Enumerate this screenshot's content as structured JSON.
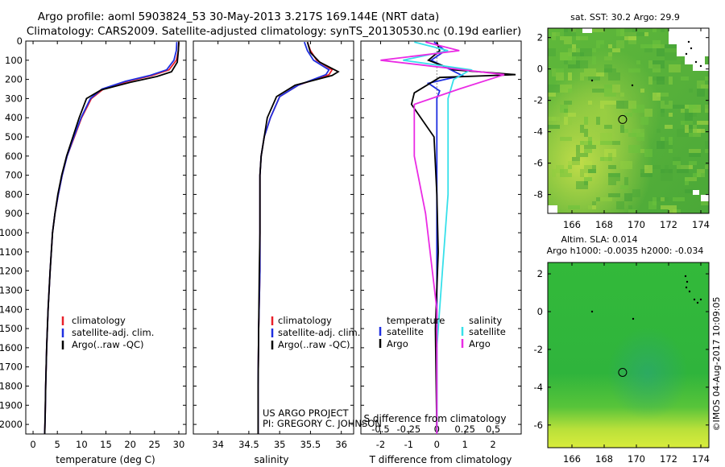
{
  "header": {
    "line1": "Argo profile: aoml 5903824_53 30-May-2013 3.217S 169.144E (NRT data)",
    "line2": "Climatology: CARS2009. Satellite-adjusted climatology: synTS_20130530.nc (0.19d earlier)"
  },
  "credits": {
    "project": "US ARGO PROJECT",
    "pi": "PI: GREGORY C. JOHNSON",
    "stamp": "©IMOS 04-Aug-2017 10:09:05"
  },
  "colors": {
    "climatology": "#e8202a",
    "satellite": "#1f2fe0",
    "argo": "#000000",
    "sal_satellite": "#37e0ea",
    "sal_argo": "#ea2ce4",
    "map_land": "#ffffff"
  },
  "chart_data": [
    {
      "type": "line",
      "id": "temperature",
      "xlabel": "temperature (deg C)",
      "ylabel": "",
      "xlim": [
        -1.5,
        31.5
      ],
      "ylim": [
        2050,
        0
      ],
      "xticks": [
        0,
        5,
        10,
        15,
        20,
        25,
        30
      ],
      "yticks": [
        0,
        100,
        200,
        300,
        400,
        500,
        600,
        700,
        800,
        900,
        1000,
        1100,
        1200,
        1300,
        1400,
        1500,
        1600,
        1700,
        1800,
        1900,
        2000
      ],
      "legend": [
        "climatology",
        "satellite-adj. clim.",
        "Argo(..raw -QC)"
      ],
      "series": [
        {
          "name": "climatology",
          "color_key": "climatology",
          "x": [
            30.0,
            29.9,
            29.5,
            28.0,
            24.5,
            19.5,
            14.5,
            12.0,
            10.0,
            8.5,
            7.0,
            6.0,
            5.2,
            4.5,
            4.0,
            3.5,
            3.1,
            2.8,
            2.6,
            2.5,
            2.4
          ],
          "y": [
            5,
            50,
            100,
            150,
            180,
            210,
            250,
            300,
            400,
            500,
            600,
            700,
            800,
            900,
            1000,
            1200,
            1400,
            1600,
            1800,
            1950,
            2050
          ]
        },
        {
          "name": "satellite-adj. clim.",
          "color_key": "satellite",
          "x": [
            29.6,
            29.5,
            29.0,
            27.5,
            24.0,
            19.0,
            14.2,
            11.8,
            9.9,
            8.4,
            7.0,
            6.0,
            5.2,
            4.5,
            4.0,
            3.5,
            3.1,
            2.8,
            2.6,
            2.5,
            2.4
          ],
          "y": [
            5,
            50,
            100,
            150,
            180,
            210,
            250,
            300,
            400,
            500,
            600,
            700,
            800,
            900,
            1000,
            1200,
            1400,
            1600,
            1800,
            1950,
            2050
          ]
        },
        {
          "name": "Argo(..raw -QC)",
          "color_key": "argo",
          "x": [
            30.0,
            29.9,
            29.7,
            28.5,
            25.5,
            20.0,
            14.0,
            11.0,
            9.5,
            8.2,
            6.9,
            5.9,
            5.1,
            4.5,
            4.0,
            3.5,
            3.1,
            2.8,
            2.6,
            2.5,
            2.4
          ],
          "y": [
            5,
            50,
            110,
            160,
            185,
            215,
            255,
            300,
            400,
            500,
            600,
            700,
            800,
            900,
            1000,
            1200,
            1400,
            1600,
            1800,
            1950,
            2050
          ]
        }
      ]
    },
    {
      "type": "line",
      "id": "salinity",
      "xlabel": "salinity",
      "ylabel": "",
      "xlim": [
        33.6,
        36.2
      ],
      "ylim": [
        2050,
        0
      ],
      "xticks": [
        34,
        34.5,
        35,
        35.5,
        36
      ],
      "xticklabels": [
        "34",
        "34.5",
        "35",
        "35.5",
        "36"
      ],
      "legend": [
        "climatology",
        "satellite-adj. clim.",
        "Argo(..raw -QC)"
      ],
      "series": [
        {
          "name": "climatology",
          "color_key": "climatology",
          "x": [
            35.45,
            35.5,
            35.6,
            35.85,
            35.8,
            35.3,
            35.0,
            34.85,
            34.75,
            34.7,
            34.68,
            34.68,
            34.68,
            34.68,
            34.66,
            34.65,
            34.65,
            34.65
          ],
          "y": [
            5,
            50,
            100,
            150,
            175,
            230,
            290,
            400,
            500,
            600,
            700,
            800,
            1000,
            1200,
            1500,
            1800,
            1950,
            2050
          ]
        },
        {
          "name": "satellite-adj. clim.",
          "color_key": "satellite",
          "x": [
            35.4,
            35.45,
            35.55,
            35.8,
            35.75,
            35.3,
            35.0,
            34.85,
            34.75,
            34.7,
            34.68,
            34.68,
            34.68,
            34.68,
            34.66,
            34.65,
            34.65,
            34.65
          ],
          "y": [
            5,
            50,
            100,
            150,
            175,
            230,
            290,
            400,
            500,
            600,
            700,
            800,
            1000,
            1200,
            1500,
            1800,
            1950,
            2050
          ]
        },
        {
          "name": "Argo(..raw -QC)",
          "color_key": "argo",
          "x": [
            35.45,
            35.5,
            35.65,
            35.95,
            35.85,
            35.25,
            34.95,
            34.8,
            34.75,
            34.7,
            34.68,
            34.68,
            34.68,
            34.67,
            34.66,
            34.65,
            34.65,
            34.65
          ],
          "y": [
            5,
            60,
            110,
            160,
            180,
            230,
            290,
            400,
            500,
            600,
            700,
            800,
            1000,
            1200,
            1500,
            1800,
            1950,
            2050
          ]
        }
      ]
    },
    {
      "type": "line",
      "id": "difference",
      "xlabel": "T difference from climatology",
      "xlabel2": "S difference from climatology",
      "xlim": [
        -2.7,
        3.0
      ],
      "ylim": [
        2050,
        0
      ],
      "xticks": [
        -2,
        -1,
        0,
        1,
        2
      ],
      "xticks2": [
        -0.5,
        -0.25,
        0,
        0.25,
        0.5
      ],
      "xticklabels2": [
        "-0.5",
        "-0.25",
        "0",
        "0.25",
        "0.5"
      ],
      "legend_headers": [
        "temperature",
        "salinity"
      ],
      "legend": [
        "satellite",
        "Argo",
        "satellite",
        "Argo"
      ],
      "series": [
        {
          "name": "T satellite",
          "color_key": "satellite",
          "x": [
            -0.1,
            0.3,
            -0.2,
            0.5,
            0.9,
            -0.3,
            0.1,
            0,
            0,
            0,
            0,
            0,
            0
          ],
          "y": [
            5,
            50,
            100,
            150,
            180,
            220,
            260,
            300,
            500,
            700,
            1000,
            1500,
            2050
          ]
        },
        {
          "name": "T Argo",
          "color_key": "argo",
          "x": [
            0,
            0.1,
            -0.3,
            0.6,
            2.8,
            0.1,
            -0.8,
            -0.9,
            -0.1,
            0,
            0.05,
            -0.05,
            0
          ],
          "y": [
            5,
            50,
            100,
            150,
            175,
            190,
            270,
            330,
            500,
            800,
            1100,
            1500,
            2050
          ]
        },
        {
          "name": "S satellite",
          "color_key": "sal_satellite",
          "x": [
            -0.2,
            0.1,
            -0.3,
            0.3,
            0.15,
            0.1,
            0.1,
            0.1,
            0.05,
            0,
            0
          ],
          "y": [
            5,
            50,
            100,
            150,
            200,
            300,
            500,
            800,
            1200,
            1600,
            2050
          ]
        },
        {
          "name": "S Argo",
          "color_key": "sal_argo",
          "x": [
            -0.1,
            0.2,
            -0.5,
            0.6,
            0.2,
            -0.2,
            -0.2,
            -0.1,
            0,
            0
          ],
          "y": [
            5,
            50,
            100,
            175,
            250,
            330,
            600,
            900,
            1400,
            2050
          ]
        }
      ]
    },
    {
      "type": "heatmap",
      "id": "sst_map",
      "title": "sat. SST: 30.2  Argo: 29.9",
      "xticks": [
        166,
        168,
        170,
        172,
        174
      ],
      "yticks": [
        2,
        0,
        -2,
        -4,
        -6,
        -8
      ],
      "xlim": [
        164.5,
        174.5
      ],
      "ylim": [
        -9.2,
        2.6
      ],
      "float_position": {
        "lon": 169.144,
        "lat": -3.217
      }
    },
    {
      "type": "heatmap",
      "id": "sla_map",
      "title1": "Altim. SLA: 0.014",
      "title2": "Argo h1000: -0.0035 h2000: -0.034",
      "xticks": [
        166,
        168,
        170,
        172,
        174
      ],
      "yticks": [
        2,
        0,
        -2,
        -4,
        -6
      ],
      "xlim": [
        164.5,
        174.5
      ],
      "ylim": [
        -7.2,
        2.6
      ],
      "float_position": {
        "lon": 169.144,
        "lat": -3.217
      }
    }
  ]
}
